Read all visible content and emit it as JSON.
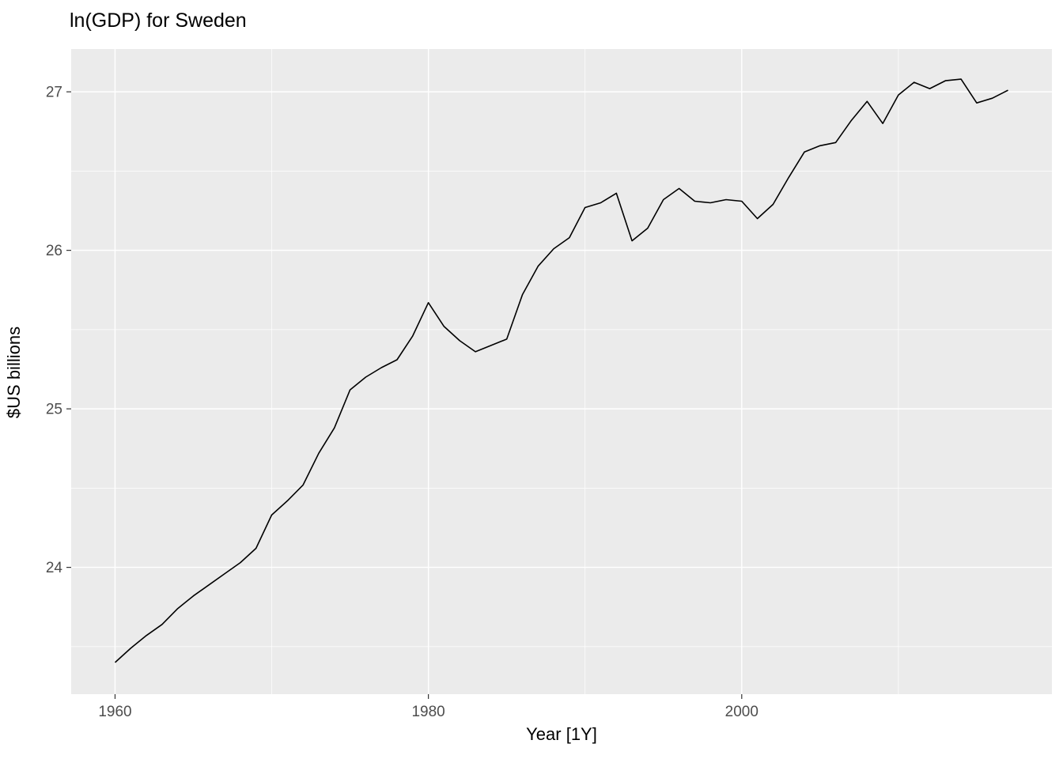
{
  "chart_data": {
    "type": "line",
    "title": "ln(GDP) for Sweden",
    "xlabel": "Year [1Y]",
    "ylabel": "$US billions",
    "x": [
      1960,
      1961,
      1962,
      1963,
      1964,
      1965,
      1966,
      1967,
      1968,
      1969,
      1970,
      1971,
      1972,
      1973,
      1974,
      1975,
      1976,
      1977,
      1978,
      1979,
      1980,
      1981,
      1982,
      1983,
      1984,
      1985,
      1986,
      1987,
      1988,
      1989,
      1990,
      1991,
      1992,
      1993,
      1994,
      1995,
      1996,
      1997,
      1998,
      1999,
      2000,
      2001,
      2002,
      2003,
      2004,
      2005,
      2006,
      2007,
      2008,
      2009,
      2010,
      2011,
      2012,
      2013,
      2014,
      2015,
      2016,
      2017
    ],
    "series": [
      {
        "name": "ln(GDP) Sweden",
        "values": [
          23.4,
          23.49,
          23.57,
          23.64,
          23.74,
          23.82,
          23.89,
          23.96,
          24.03,
          24.12,
          24.33,
          24.42,
          24.52,
          24.72,
          24.88,
          25.12,
          25.2,
          25.26,
          25.31,
          25.46,
          25.67,
          25.52,
          25.43,
          25.36,
          25.4,
          25.44,
          25.72,
          25.9,
          26.01,
          26.08,
          26.27,
          26.3,
          26.36,
          26.06,
          26.14,
          26.32,
          26.39,
          26.31,
          26.3,
          26.32,
          26.31,
          26.2,
          26.29,
          26.46,
          26.62,
          26.66,
          26.68,
          26.82,
          26.94,
          26.8,
          26.98,
          27.06,
          27.02,
          27.07,
          27.08,
          26.93,
          26.96,
          27.01
        ]
      }
    ],
    "xlim": [
      1957.2,
      2019.8
    ],
    "ylim": [
      23.2,
      27.27
    ],
    "x_ticks": [
      1960,
      1980,
      2000
    ],
    "y_ticks": [
      24,
      25,
      26,
      27
    ],
    "x_minor_ticks": [
      1970,
      1990,
      2010
    ],
    "y_minor_ticks": [
      23.5,
      24.5,
      25.5,
      26.5
    ],
    "grid": true,
    "legend_position": "none",
    "styles": {
      "panel_bg": "#EBEBEB",
      "grid_color": "#FFFFFF",
      "line_color": "#000000",
      "axis_text_color": "#4D4D4D",
      "tick_mark_color": "#333333"
    }
  }
}
